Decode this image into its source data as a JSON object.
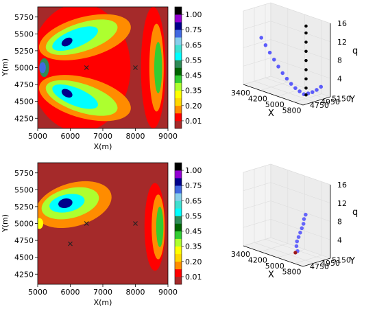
{
  "chart_data": [
    {
      "type": "heatmap",
      "panel": "top-left contour",
      "xlabel": "X(m)",
      "ylabel": "Y(m)",
      "xlim": [
        5000,
        9000
      ],
      "ylim": [
        4100,
        5900
      ],
      "x_ticks": [
        "5000",
        "6000",
        "7000",
        "8000",
        "9000"
      ],
      "y_ticks": [
        "4250",
        "4500",
        "4750",
        "5000",
        "5250",
        "5500",
        "5750"
      ],
      "markers": [
        {
          "x": 6500,
          "y": 5000,
          "symbol": "x"
        },
        {
          "x": 8000,
          "y": 5000,
          "symbol": "x"
        }
      ],
      "regions": [
        {
          "level": 0.75,
          "x": 5150,
          "y": 5000,
          "rx": 100,
          "ry": 80
        },
        {
          "level": 0.55,
          "x": 5200,
          "y": 5000,
          "rx": 150,
          "ry": 140
        },
        {
          "level": 0.85,
          "x": 5900,
          "y": 5380,
          "rx": 180,
          "ry": 55,
          "rot": -30
        },
        {
          "level": 0.85,
          "x": 5900,
          "y": 4620,
          "rx": 180,
          "ry": 55,
          "rot": 30
        },
        {
          "level": 0.6,
          "x": 6150,
          "y": 5430,
          "rx": 750,
          "ry": 130,
          "rot": -22
        },
        {
          "level": 0.6,
          "x": 6150,
          "y": 4570,
          "rx": 750,
          "ry": 130,
          "rot": 22
        },
        {
          "level": 0.4,
          "x": 6350,
          "y": 5450,
          "rx": 1150,
          "ry": 210,
          "rot": -18
        },
        {
          "level": 0.4,
          "x": 6350,
          "y": 4550,
          "rx": 1150,
          "ry": 210,
          "rot": 18
        },
        {
          "level": 0.25,
          "x": 6450,
          "y": 5450,
          "rx": 1450,
          "ry": 300,
          "rot": -15
        },
        {
          "level": 0.25,
          "x": 6450,
          "y": 4550,
          "rx": 1450,
          "ry": 300,
          "rot": 15
        },
        {
          "level": 0.1,
          "x": 6300,
          "y": 5000,
          "rx": 1550,
          "ry": 950
        },
        {
          "level": 0.45,
          "x": 8700,
          "y": 5000,
          "rx": 120,
          "ry": 380
        },
        {
          "level": 0.25,
          "x": 8650,
          "y": 5000,
          "rx": 220,
          "ry": 650
        },
        {
          "level": 0.1,
          "x": 8550,
          "y": 5000,
          "rx": 380,
          "ry": 900
        }
      ]
    },
    {
      "type": "scatter",
      "panel": "top-right 3D",
      "xlabel": "X",
      "ylabel": "Y",
      "zlabel": "q",
      "x_ticks": [
        "3400",
        "4200",
        "5000",
        "5800"
      ],
      "y_ticks": [
        "5150",
        "4950",
        "4750"
      ],
      "z_ticks": [
        "4",
        "8",
        "12",
        "16"
      ],
      "series": [
        {
          "color": "#2c2cff",
          "points": [
            [
              5600,
              5000,
              0.5
            ],
            [
              5400,
              5000,
              0.8
            ],
            [
              5200,
              5000,
              1.2
            ],
            [
              5000,
              5000,
              1.8
            ],
            [
              4800,
              5000,
              2.6
            ],
            [
              4600,
              5000,
              3.5
            ],
            [
              4400,
              5000,
              4.6
            ],
            [
              4200,
              5000,
              5.8
            ],
            [
              4000,
              5000,
              7.0
            ],
            [
              3800,
              5000,
              8.3
            ],
            [
              3600,
              5000,
              9.6
            ],
            [
              5800,
              5000,
              1.0
            ],
            [
              6000,
              5000,
              1.6
            ],
            [
              6200,
              5000,
              2.4
            ],
            [
              6400,
              5000,
              3.4
            ]
          ]
        },
        {
          "color": "#000000",
          "points": [
            [
              5700,
              5000,
              0.5
            ],
            [
              5700,
              5000,
              2.0
            ],
            [
              5700,
              5000,
              4.0
            ],
            [
              5700,
              5000,
              6.0
            ],
            [
              5700,
              5000,
              8.0
            ],
            [
              5700,
              5000,
              10.0
            ],
            [
              5700,
              5000,
              12.0
            ],
            [
              5700,
              5000,
              14.0
            ],
            [
              5700,
              5000,
              15.5
            ]
          ]
        }
      ]
    },
    {
      "type": "heatmap",
      "panel": "bottom-left contour",
      "xlabel": "X(m)",
      "ylabel": "Y(m)",
      "xlim": [
        5000,
        9000
      ],
      "ylim": [
        4100,
        5900
      ],
      "x_ticks": [
        "5000",
        "6000",
        "7000",
        "8000",
        "9000"
      ],
      "y_ticks": [
        "4250",
        "4500",
        "4750",
        "5000",
        "5250",
        "5500",
        "5750"
      ],
      "markers": [
        {
          "x": 6500,
          "y": 5000,
          "symbol": "x"
        },
        {
          "x": 8000,
          "y": 5000,
          "symbol": "x"
        },
        {
          "x": 6000,
          "y": 4700,
          "symbol": "x"
        }
      ],
      "regions": [
        {
          "level": 0.85,
          "x": 5850,
          "y": 5300,
          "rx": 220,
          "ry": 70,
          "rot": -12
        },
        {
          "level": 0.6,
          "x": 5900,
          "y": 5300,
          "rx": 550,
          "ry": 130,
          "rot": -12
        },
        {
          "level": 0.4,
          "x": 6000,
          "y": 5300,
          "rx": 900,
          "ry": 220,
          "rot": -14
        },
        {
          "level": 0.25,
          "x": 6100,
          "y": 5280,
          "rx": 1200,
          "ry": 320,
          "rot": -16
        },
        {
          "level": 0.35,
          "x": 5050,
          "y": 5000,
          "rx": 120,
          "ry": 80
        },
        {
          "level": 0.45,
          "x": 8750,
          "y": 4950,
          "rx": 110,
          "ry": 300
        },
        {
          "level": 0.25,
          "x": 8700,
          "y": 4950,
          "rx": 200,
          "ry": 480
        },
        {
          "level": 0.1,
          "x": 8600,
          "y": 4950,
          "rx": 320,
          "ry": 650
        }
      ]
    },
    {
      "type": "scatter",
      "panel": "bottom-right 3D",
      "xlabel": "X",
      "ylabel": "Y",
      "zlabel": "q",
      "x_ticks": [
        "3400",
        "4200",
        "5000",
        "5800"
      ],
      "y_ticks": [
        "5150",
        "4950",
        "4750"
      ],
      "z_ticks": [
        "4",
        "8",
        "12",
        "16"
      ],
      "series": [
        {
          "color": "#3a3aff",
          "points": [
            [
              5300,
              5000,
              1.0
            ],
            [
              5250,
              5000,
              2.0
            ],
            [
              5250,
              5010,
              3.0
            ],
            [
              5300,
              5020,
              4.0
            ],
            [
              5350,
              5030,
              5.0
            ],
            [
              5400,
              5040,
              6.0
            ],
            [
              5450,
              5050,
              7.0
            ],
            [
              5450,
              5060,
              8.0
            ],
            [
              5500,
              5070,
              9.0
            ]
          ]
        },
        {
          "color": "#000000",
          "points": [
            [
              5200,
              5000,
              0.5
            ]
          ]
        },
        {
          "color": "#cc2222",
          "points": [
            [
              5200,
              5000,
              0.5
            ]
          ]
        }
      ]
    }
  ],
  "colorbar": {
    "tick_labels": [
      "0.01",
      "0.20",
      "0.35",
      "0.45",
      "0.55",
      "0.65",
      "0.75",
      "1.00"
    ],
    "levels": [
      0.0,
      0.1,
      0.2,
      0.3,
      0.35,
      0.4,
      0.45,
      0.5,
      0.55,
      0.6,
      0.65,
      0.7,
      0.75,
      0.8,
      0.9,
      1.0
    ],
    "colors": [
      "#a52a2a",
      "#ff0000",
      "#ff8c00",
      "#ffd700",
      "#ffff00",
      "#adff2f",
      "#32cd32",
      "#006400",
      "#2e8b57",
      "#00ffff",
      "#40e0d0",
      "#87ceeb",
      "#4169e1",
      "#00008b",
      "#9400d3",
      "#000000"
    ]
  }
}
